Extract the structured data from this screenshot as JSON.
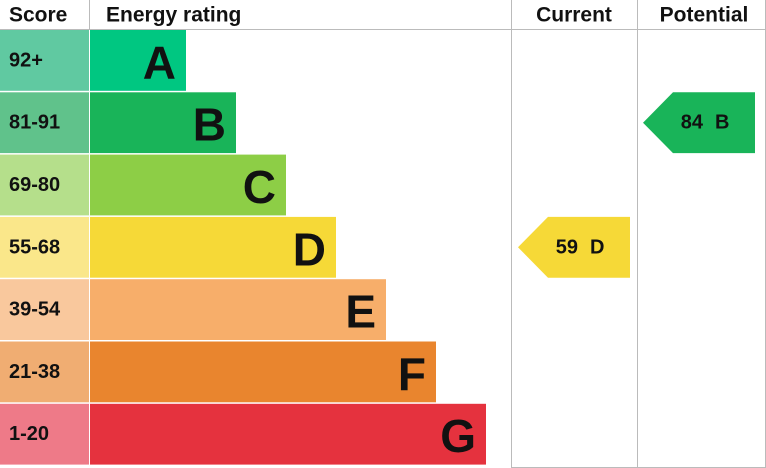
{
  "header": {
    "score": "Score",
    "rating": "Energy rating",
    "current": "Current",
    "potential": "Potential"
  },
  "bands": [
    {
      "score": "92+",
      "letter": "A",
      "color": "#00c781",
      "score_color": "#60c9a1"
    },
    {
      "score": "81-91",
      "letter": "B",
      "color": "#19b459",
      "score_color": "#60c28b"
    },
    {
      "score": "69-80",
      "letter": "C",
      "color": "#8dce46",
      "score_color": "#b5df8b"
    },
    {
      "score": "55-68",
      "letter": "D",
      "color": "#f6d937",
      "score_color": "#fae78a"
    },
    {
      "score": "39-54",
      "letter": "E",
      "color": "#f7ae6a",
      "score_color": "#f9c89d"
    },
    {
      "score": "21-38",
      "letter": "F",
      "color": "#e9852e",
      "score_color": "#f0ad72"
    },
    {
      "score": "1-20",
      "letter": "G",
      "color": "#e5323e",
      "score_color": "#ee7a88"
    }
  ],
  "current": {
    "value": 59,
    "rating": "D",
    "color": "#f6d937"
  },
  "potential": {
    "value": 84,
    "rating": "B",
    "color": "#19b459"
  }
}
